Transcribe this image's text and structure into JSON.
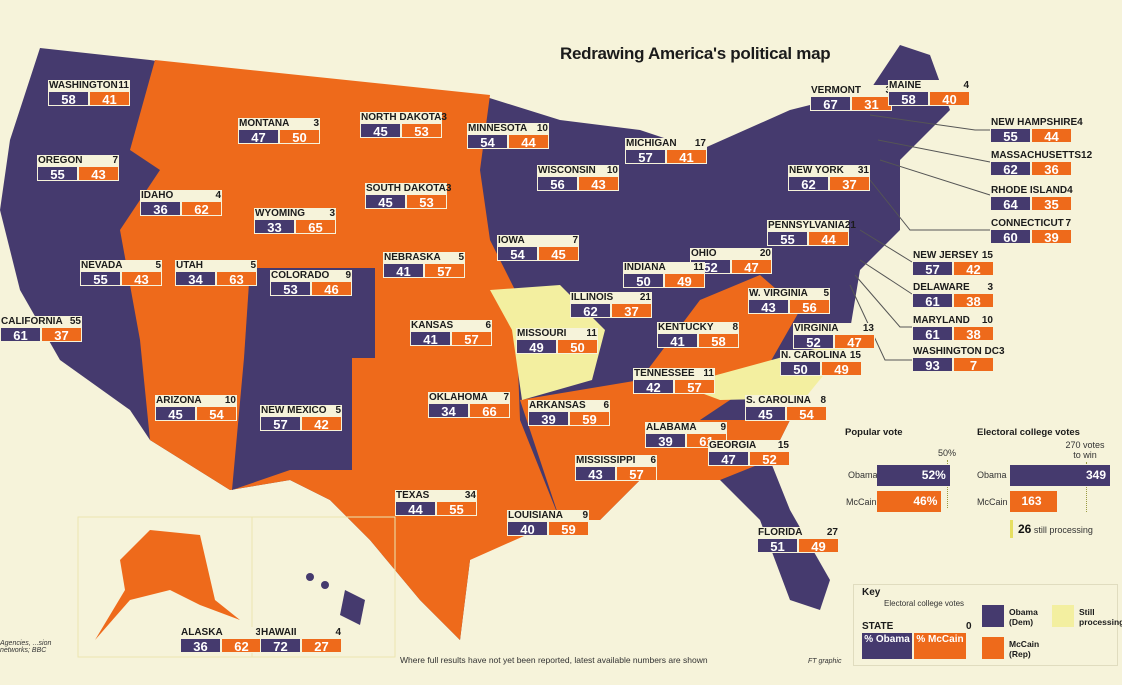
{
  "title": "Redrawing America's political map",
  "colors": {
    "obama": "#453a6e",
    "mccain": "#ee6a1b",
    "processing": "#f3efa0",
    "background": "#f6f3da"
  },
  "states": [
    {
      "name": "WASHINGTON",
      "ev": "11",
      "obama": "58",
      "mccain": "41",
      "winner": "obama"
    },
    {
      "name": "OREGON",
      "ev": "7",
      "obama": "55",
      "mccain": "43",
      "winner": "obama"
    },
    {
      "name": "IDAHO",
      "ev": "4",
      "obama": "36",
      "mccain": "62",
      "winner": "mccain"
    },
    {
      "name": "MONTANA",
      "ev": "3",
      "obama": "47",
      "mccain": "50",
      "winner": "mccain"
    },
    {
      "name": "NORTH DAKOTA",
      "ev": "3",
      "obama": "45",
      "mccain": "53",
      "winner": "mccain"
    },
    {
      "name": "MINNESOTA",
      "ev": "10",
      "obama": "54",
      "mccain": "44",
      "winner": "obama"
    },
    {
      "name": "WISCONSIN",
      "ev": "10",
      "obama": "56",
      "mccain": "43",
      "winner": "obama"
    },
    {
      "name": "MICHIGAN",
      "ev": "17",
      "obama": "57",
      "mccain": "41",
      "winner": "obama"
    },
    {
      "name": "VERMONT",
      "ev": "3",
      "obama": "67",
      "mccain": "31",
      "winner": "obama"
    },
    {
      "name": "MAINE",
      "ev": "4",
      "obama": "58",
      "mccain": "40",
      "winner": "obama"
    },
    {
      "name": "NEW HAMPSHIRE",
      "ev": "4",
      "obama": "55",
      "mccain": "44",
      "winner": "obama"
    },
    {
      "name": "MASSACHUSETTS",
      "ev": "12",
      "obama": "62",
      "mccain": "36",
      "winner": "obama"
    },
    {
      "name": "RHODE ISLAND",
      "ev": "4",
      "obama": "64",
      "mccain": "35",
      "winner": "obama"
    },
    {
      "name": "CONNECTICUT",
      "ev": "7",
      "obama": "60",
      "mccain": "39",
      "winner": "obama"
    },
    {
      "name": "NEW YORK",
      "ev": "31",
      "obama": "62",
      "mccain": "37",
      "winner": "obama"
    },
    {
      "name": "SOUTH DAKOTA",
      "ev": "3",
      "obama": "45",
      "mccain": "53",
      "winner": "mccain"
    },
    {
      "name": "WYOMING",
      "ev": "3",
      "obama": "33",
      "mccain": "65",
      "winner": "mccain"
    },
    {
      "name": "NEVADA",
      "ev": "5",
      "obama": "55",
      "mccain": "43",
      "winner": "obama"
    },
    {
      "name": "UTAH",
      "ev": "5",
      "obama": "34",
      "mccain": "63",
      "winner": "mccain"
    },
    {
      "name": "COLORADO",
      "ev": "9",
      "obama": "53",
      "mccain": "46",
      "winner": "obama"
    },
    {
      "name": "NEBRASKA",
      "ev": "5",
      "obama": "41",
      "mccain": "57",
      "winner": "mccain"
    },
    {
      "name": "IOWA",
      "ev": "7",
      "obama": "54",
      "mccain": "45",
      "winner": "obama"
    },
    {
      "name": "PENNSYLVANIA",
      "ev": "21",
      "obama": "55",
      "mccain": "44",
      "winner": "obama"
    },
    {
      "name": "NEW JERSEY",
      "ev": "15",
      "obama": "57",
      "mccain": "42",
      "winner": "obama"
    },
    {
      "name": "OHIO",
      "ev": "20",
      "obama": "52",
      "mccain": "47",
      "winner": "obama"
    },
    {
      "name": "INDIANA",
      "ev": "11",
      "obama": "50",
      "mccain": "49",
      "winner": "obama"
    },
    {
      "name": "ILLINOIS",
      "ev": "21",
      "obama": "62",
      "mccain": "37",
      "winner": "obama"
    },
    {
      "name": "W. VIRGINIA",
      "ev": "5",
      "obama": "43",
      "mccain": "56",
      "winner": "mccain"
    },
    {
      "name": "DELAWARE",
      "ev": "3",
      "obama": "61",
      "mccain": "38",
      "winner": "obama"
    },
    {
      "name": "CALIFORNIA",
      "ev": "55",
      "obama": "61",
      "mccain": "37",
      "winner": "obama"
    },
    {
      "name": "KANSAS",
      "ev": "6",
      "obama": "41",
      "mccain": "57",
      "winner": "mccain"
    },
    {
      "name": "MISSOURI",
      "ev": "11",
      "obama": "49",
      "mccain": "50",
      "winner": "processing"
    },
    {
      "name": "KENTUCKY",
      "ev": "8",
      "obama": "41",
      "mccain": "58",
      "winner": "mccain"
    },
    {
      "name": "VIRGINIA",
      "ev": "13",
      "obama": "52",
      "mccain": "47",
      "winner": "obama"
    },
    {
      "name": "MARYLAND",
      "ev": "10",
      "obama": "61",
      "mccain": "38",
      "winner": "obama"
    },
    {
      "name": "WASHINGTON DC",
      "ev": "3",
      "obama": "93",
      "mccain": "7",
      "winner": "obama"
    },
    {
      "name": "N. CAROLINA",
      "ev": "15",
      "obama": "50",
      "mccain": "49",
      "winner": "processing"
    },
    {
      "name": "TENNESSEE",
      "ev": "11",
      "obama": "42",
      "mccain": "57",
      "winner": "mccain"
    },
    {
      "name": "ARIZONA",
      "ev": "10",
      "obama": "45",
      "mccain": "54",
      "winner": "mccain"
    },
    {
      "name": "NEW MEXICO",
      "ev": "5",
      "obama": "57",
      "mccain": "42",
      "winner": "obama"
    },
    {
      "name": "OKLAHOMA",
      "ev": "7",
      "obama": "34",
      "mccain": "66",
      "winner": "mccain"
    },
    {
      "name": "ARKANSAS",
      "ev": "6",
      "obama": "39",
      "mccain": "59",
      "winner": "mccain"
    },
    {
      "name": "S. CAROLINA",
      "ev": "8",
      "obama": "45",
      "mccain": "54",
      "winner": "mccain"
    },
    {
      "name": "ALABAMA",
      "ev": "9",
      "obama": "39",
      "mccain": "61",
      "winner": "mccain"
    },
    {
      "name": "GEORGIA",
      "ev": "15",
      "obama": "47",
      "mccain": "52",
      "winner": "mccain"
    },
    {
      "name": "MISSISSIPPI",
      "ev": "6",
      "obama": "43",
      "mccain": "57",
      "winner": "mccain"
    },
    {
      "name": "TEXAS",
      "ev": "34",
      "obama": "44",
      "mccain": "55",
      "winner": "mccain"
    },
    {
      "name": "LOUISIANA",
      "ev": "9",
      "obama": "40",
      "mccain": "59",
      "winner": "mccain"
    },
    {
      "name": "FLORIDA",
      "ev": "27",
      "obama": "51",
      "mccain": "49",
      "winner": "obama"
    },
    {
      "name": "ALASKA",
      "ev": "3",
      "obama": "36",
      "mccain": "62",
      "winner": "mccain"
    },
    {
      "name": "HAWAII",
      "ev": "4",
      "obama": "72",
      "mccain": "27",
      "winner": "obama"
    }
  ],
  "popular_vote": {
    "title": "Popular vote",
    "marker": "50%",
    "obama_label": "Obama",
    "obama_value": "52%",
    "obama_pct": 52,
    "mccain_label": "McCain",
    "mccain_value": "46%",
    "mccain_pct": 46
  },
  "electoral": {
    "title": "Electoral college votes",
    "marker": "270 votes to win",
    "obama_label": "Obama",
    "obama_value": "349",
    "mccain_label": "McCain",
    "mccain_value": "163",
    "processing_value": "26",
    "processing_label": "still processing"
  },
  "key": {
    "title": "Key",
    "ev_label": "Electoral college votes",
    "state_label": "STATE",
    "ev_sample": "0",
    "obama_pct": "% Obama",
    "mccain_pct": "% McCain",
    "obama": "Obama (Dem)",
    "mccain": "McCain (Rep)",
    "processing": "Still processing"
  },
  "footnote": "Where full results have not yet been reported, latest available numbers are shown",
  "source": "Agencies, ...sion networks; BBC",
  "credit": "FT graphic"
}
